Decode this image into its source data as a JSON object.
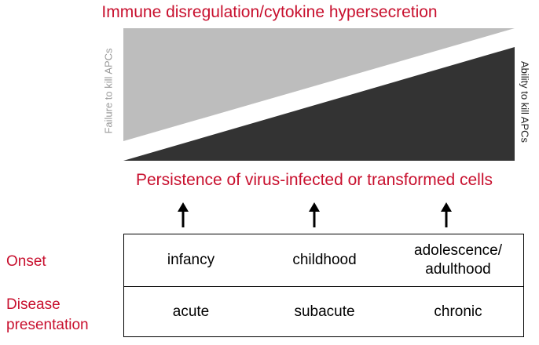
{
  "titles": {
    "top": "Immune disregulation/cytokine hypersecretion",
    "middle": "Persistence of virus-infected or transformed cells"
  },
  "triangles": {
    "left_label": "Failure to kill APCs",
    "right_label": "Ability to kill APCs",
    "upper_color": "#bdbdbd",
    "lower_color": "#333333"
  },
  "arrows": [
    "up-arrow",
    "up-arrow",
    "up-arrow"
  ],
  "rows": [
    {
      "label": "Onset",
      "cells": [
        "infancy",
        "childhood",
        "adolescence/\nadulthood"
      ]
    },
    {
      "label": "Disease\npresentation",
      "cells": [
        "acute",
        "subacute",
        "chronic"
      ]
    }
  ],
  "colors": {
    "accent_red": "#c8102e",
    "text": "#000000"
  }
}
